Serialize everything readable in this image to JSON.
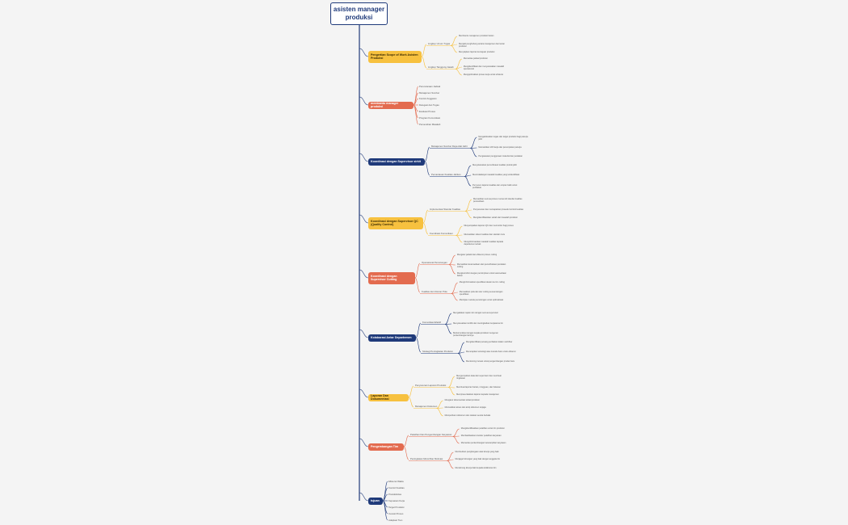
{
  "title": "asisten manager produksi",
  "colors": {
    "orange": "#f7c13f",
    "red": "#e36b4f",
    "navy": "#1f3a7a"
  },
  "branches": [
    {
      "label": "Pengertian Scope of Work Asisten Produksi",
      "color": "orange",
      "subs": [
        {
          "label": "Lingkup Umum Tugas",
          "leaves": [
            "Membantu manajemen produksi harian",
            "Menjadi penghubung antara manajemen dan lantai produksi",
            "Menyiapkan laporan kemajuan produksi"
          ]
        },
        {
          "label": "Lingkup Tanggung Jawab",
          "leaves": [
            "Memantau jadwal produksi",
            "Mengidentifikasi dan menyelesaikan masalah operasional",
            "Mengoptimalkan proses kerja untuk efisiensi"
          ]
        }
      ]
    },
    {
      "label": "membantu manager produksi",
      "color": "red",
      "items": [
        "Perencanaan Jadwal",
        "Manajemen Sumber",
        "Kontrol Anggaran",
        "Delegasi dan Tugas",
        "Evaluasi Proses",
        "Program Komunikasi",
        "Pemecahan Masalah"
      ]
    },
    {
      "label": "Koordinasi dengan Supervisor sirkit",
      "color": "navy",
      "subs": [
        {
          "label": "Manajemen Sumber Daya Alat Jahit",
          "leaves": [
            "Mengalokasikan tugas dan target produksi bagi pekerja jahit",
            "Memastikan shift kerja dan penempatan pekerja",
            "Pengawasan penggunaan material dan peralatan"
          ]
        },
        {
          "label": "Pemantauan Kualitas Jahitan",
          "leaves": [
            "Menyelaraskan pemeriksaan kualitas produk jahit",
            "Menindaklanjuti masalah kualitas yang teridentifikasi",
            "Penyusun laporan kualitas dan umpan balik untuk perbaikan"
          ]
        }
      ]
    },
    {
      "label": "Koordinasi dengan Supervisor QC (Quality Control)",
      "color": "orange",
      "subs": [
        {
          "label": "Implementasi Standar Kualitas",
          "leaves": [
            "Memastikan semua proses memenuhi standar kualitas perusahaan",
            "Penyusunan dan memaparkan prosedur kontrol kualitas",
            "Mengidentifikasikan sebab dari masalah produksi"
          ]
        },
        {
          "label": "Koordinasi Komunikasi",
          "leaves": [
            "Menyampaikan laporan QC dan memonitor bagi proses",
            "Memastikan sistem kualitas dan standar mutu",
            "Menginformasikan masalah kualitas kepada departemen terkait"
          ]
        }
      ]
    },
    {
      "label": "Koordinasi dengan Supervisor Cutting",
      "color": "red",
      "subs": [
        {
          "label": "Operasional Pemotongan",
          "leaves": [
            "Mengatur jadwal dan efisiensi proses cutting",
            "Memastikan ketersediaan dan pemeliharaan peralatan cutting",
            "Mengkoordinir dengan pemimpinan untuk ketersediaan bahan"
          ]
        },
        {
          "label": "Kualitas dan Ukuran Pola",
          "leaves": [
            "Menginformasikan spesifikasi desain ke tim cutting",
            "Memastikan pola dan alur cutting sesuai dengan spesifikasi",
            "Meninjau metode pemotongan untuk optimalisasi"
          ]
        }
      ]
    },
    {
      "label": "Kolaborasi Antar Departemen",
      "color": "navy",
      "subs": [
        {
          "label": "Komunikasi Efektif",
          "leaves": [
            "Mengadakan rapat rutin dengan semua supervisor",
            "Menyelesaikan konflik dan meningkatkan kerjasama tim",
            "Berkomunikasi dengan kepala produksi mengenai perkembangan lainnya"
          ]
        },
        {
          "label": "Strategi Peningkatan Produksi",
          "leaves": [
            "Mengidentifikasi peluang perbaikan dalam workflow",
            "Menerapkan teknologi atau metode baru untuk efisiensi",
            "Mendorong inovasi untuk pengembangan produk baru"
          ]
        }
      ]
    },
    {
      "label": "Laporan Dan Dokumentasi",
      "color": "orange",
      "subs": [
        {
          "label": "Penyusunan Laporan Produksi",
          "leaves": [
            "Mengumpulkan data dari supervisor dan membuat ringkasan",
            "Membuat laporan harian, mingguan, dan bulanan",
            "Mempresentasikan laporan kepada manajemen"
          ]
        },
        {
          "label": "Manajemen Dokumen",
          "leaves": [
            "Mengatur dokumentasi terkait produksi",
            "Memastikan akses dan arsip dokumen terjaga",
            "Memperbarui dokumen dan catatan secara berkala"
          ]
        }
      ]
    },
    {
      "label": "Pengembangan Tim",
      "color": "red",
      "subs": [
        {
          "label": "Pelatihan Dan Pengembangan Karyawan",
          "leaves": [
            "Mengidentifikasikan pelatihan untuk tim produksi",
            "Memfasilitasikan transfer pelatihan karyawan",
            "Memantau perkembangan keterampilan karyawan"
          ]
        },
        {
          "label": "Peningkatan Moral Dan Motivasi",
          "leaves": [
            "Memberikan penghargaan atas kinerja yang baik",
            "Menjaga hubungan yang baik dengan anggota tim",
            "Mendorong kinerja baik kepada kolaborasi tim"
          ]
        }
      ]
    },
    {
      "label": "tujuan",
      "color": "navy",
      "items": [
        "Efisiensi Waktu",
        "Kontrol Kualitas",
        "Produktivitas",
        "Kepuasan Kerja",
        "Target Produksi",
        "Inovasi Proses",
        "Adaptasi Tren"
      ]
    }
  ]
}
